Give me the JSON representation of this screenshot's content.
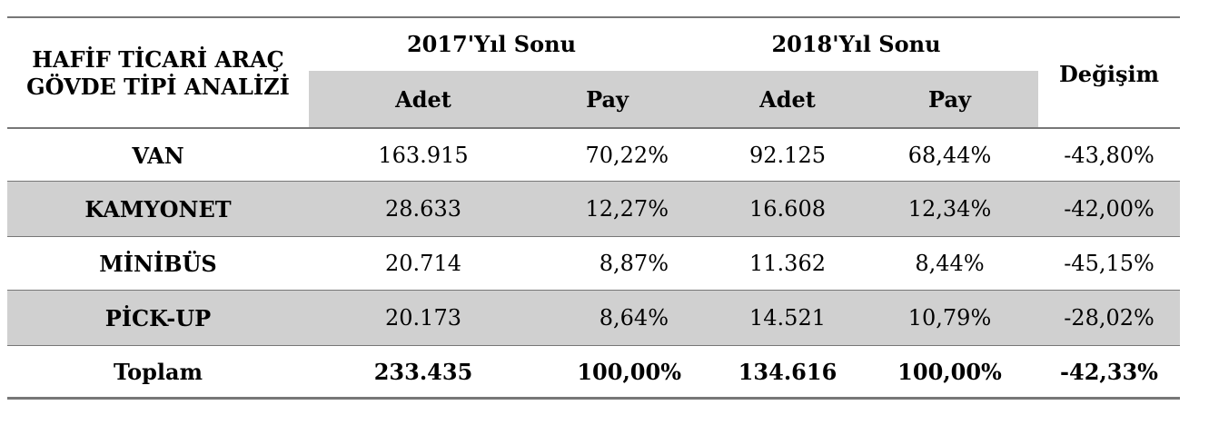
{
  "header": {
    "corner_title": "HAFİF TİCARİ ARAÇ GÖVDE TİPİ ANALİZİ",
    "year_2017": "2017'Yıl Sonu",
    "year_2018": "2018'Yıl Sonu",
    "change": "Değişim",
    "adet": "Adet",
    "pay": "Pay"
  },
  "rows": [
    {
      "label": "VAN",
      "adet_2017": "163.915",
      "pay_2017": "70,22%",
      "adet_2018": "92.125",
      "pay_2018": "68,44%",
      "change": "-43,80%"
    },
    {
      "label": "KAMYONET",
      "adet_2017": "28.633",
      "pay_2017": "12,27%",
      "adet_2018": "16.608",
      "pay_2018": "12,34%",
      "change": "-42,00%"
    },
    {
      "label": "MİNİBÜS",
      "adet_2017": "20.714",
      "pay_2017": "8,87%",
      "adet_2018": "11.362",
      "pay_2018": "8,44%",
      "change": "-45,15%"
    },
    {
      "label": "PİCK-UP",
      "adet_2017": "20.173",
      "pay_2017": "8,64%",
      "adet_2018": "14.521",
      "pay_2018": "10,79%",
      "change": "-28,02%"
    }
  ],
  "total": {
    "label": "Toplam",
    "adet_2017": "233.435",
    "pay_2017": "100,00%",
    "adet_2018": "134.616",
    "pay_2018": "100,00%",
    "change": "-42,33%"
  }
}
